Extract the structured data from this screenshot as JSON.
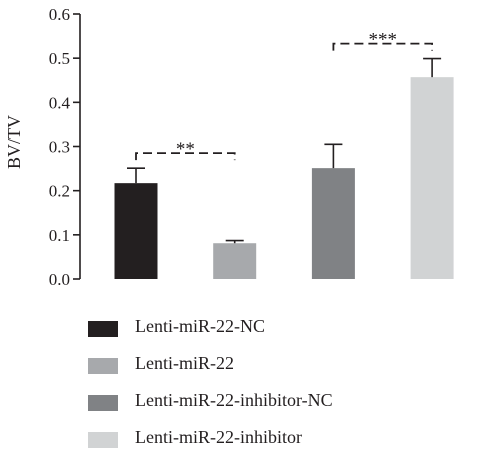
{
  "chart_data": {
    "type": "bar",
    "categories": [
      "Lenti-miR-22-NC",
      "Lenti-miR-22",
      "Lenti-miR-22-inhibitor-NC",
      "Lenti-miR-22-inhibitor"
    ],
    "values": [
      0.217,
      0.081,
      0.251,
      0.457
    ],
    "errors": [
      0.034,
      0.006,
      0.054,
      0.042
    ],
    "colors": [
      "#231f20",
      "#a7a9ac",
      "#808285",
      "#d1d3d4"
    ],
    "ylabel": "BV/TV",
    "xlabel": "",
    "ylim": [
      0,
      0.6
    ],
    "yticks": [
      "0.0",
      "0.1",
      "0.2",
      "0.3",
      "0.4",
      "0.5",
      "0.6"
    ],
    "significance": [
      {
        "from": 0,
        "to": 1,
        "label": "**"
      },
      {
        "from": 2,
        "to": 3,
        "label": "***"
      }
    ],
    "legend": [
      {
        "label": "Lenti-miR-22-NC",
        "color": "#231f20"
      },
      {
        "label": "Lenti-miR-22",
        "color": "#a7a9ac"
      },
      {
        "label": "Lenti-miR-22-inhibitor-NC",
        "color": "#808285"
      },
      {
        "label": "Lenti-miR-22-inhibitor",
        "color": "#d1d3d4"
      }
    ],
    "legend_position": "bottom",
    "grid": false
  }
}
